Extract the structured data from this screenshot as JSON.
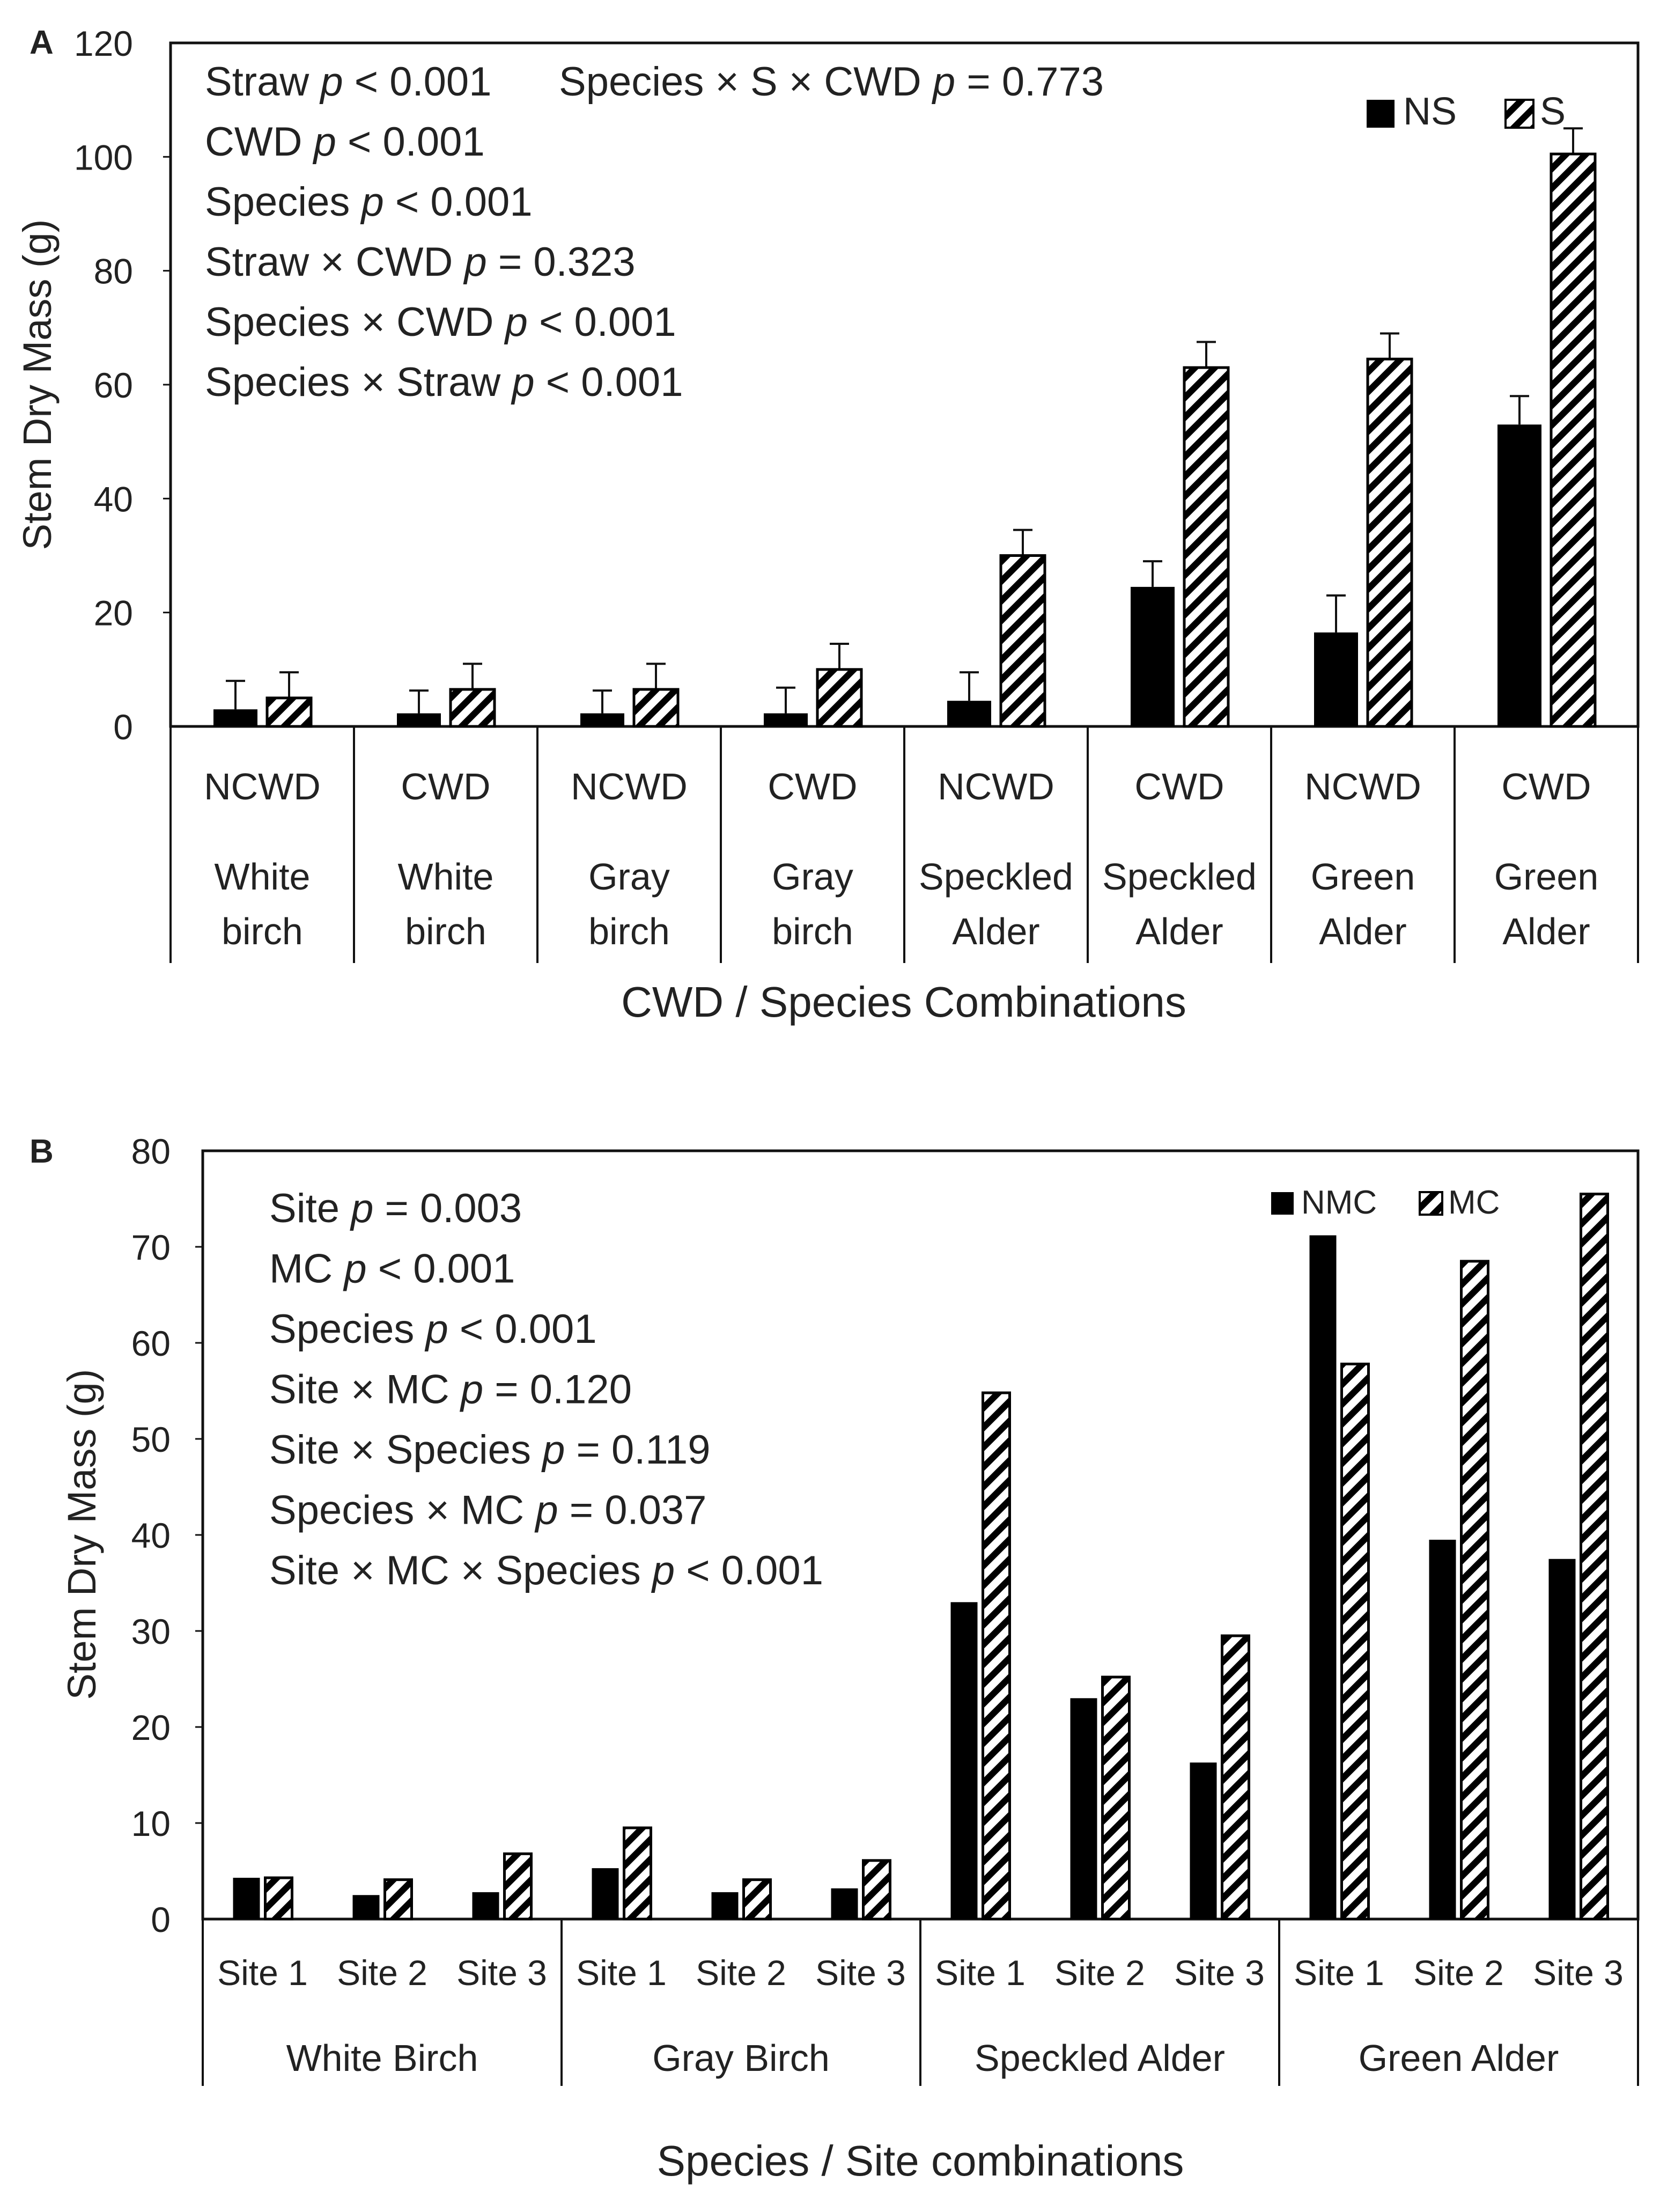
{
  "chart_data": [
    {
      "panel": "A",
      "type": "bar",
      "ylabel": "Stem Dry Mass (g)",
      "xlabel": "CWD / Species Combinations",
      "ylim": [
        0,
        120
      ],
      "yticks": [
        "0",
        "20",
        "40",
        "60",
        "80",
        "100",
        "120"
      ],
      "categories": [
        {
          "cwd": "NCWD",
          "species": [
            "White",
            "birch"
          ]
        },
        {
          "cwd": "CWD",
          "species": [
            "White",
            "birch"
          ]
        },
        {
          "cwd": "NCWD",
          "species": [
            "Gray",
            "birch"
          ]
        },
        {
          "cwd": "CWD",
          "species": [
            "Gray",
            "birch"
          ]
        },
        {
          "cwd": "NCWD",
          "species": [
            "Speckled",
            "Alder"
          ]
        },
        {
          "cwd": "CWD",
          "species": [
            "Speckled",
            "Alder"
          ]
        },
        {
          "cwd": "NCWD",
          "species": [
            "Green",
            "Alder"
          ]
        },
        {
          "cwd": "CWD",
          "species": [
            "Green",
            "Alder"
          ]
        }
      ],
      "series": [
        {
          "name": "NS",
          "fill": "solid",
          "values": [
            3,
            2.3,
            2.3,
            2.3,
            4.5,
            24.5,
            16.5,
            53
          ],
          "errors": [
            5,
            4,
            4,
            4.5,
            5,
            4.5,
            6.5,
            5
          ]
        },
        {
          "name": "S",
          "fill": "hatched",
          "values": [
            5,
            6.5,
            6.5,
            10,
            30,
            63,
            64.5,
            100.5
          ],
          "errors": [
            4.5,
            4.5,
            4.5,
            4.5,
            4.5,
            4.5,
            4.5,
            4.5
          ]
        }
      ],
      "legend": [
        "NS",
        "S"
      ],
      "legend_position": "top-right",
      "annotations": [
        {
          "label": "Straw",
          "p": "p",
          "rel": " < 0.001"
        },
        {
          "label": "Species × S × CWD",
          "p": "p",
          "rel": " = 0.773"
        },
        {
          "label": "CWD",
          "p": "p",
          "rel": " < 0.001"
        },
        {
          "label": "Species",
          "p": "p",
          "rel": " < 0.001"
        },
        {
          "label": "Straw × CWD",
          "p": "p",
          "rel": " = 0.323"
        },
        {
          "label": "Species × CWD",
          "p": "p",
          "rel": " < 0.001"
        },
        {
          "label": "Species × Straw",
          "p": "p",
          "rel": " < 0.001"
        }
      ]
    },
    {
      "panel": "B",
      "type": "bar",
      "ylabel": "Stem Dry Mass (g)",
      "xlabel": "Species / Site combinations",
      "ylim": [
        0,
        80
      ],
      "yticks": [
        "0",
        "10",
        "20",
        "30",
        "40",
        "50",
        "60",
        "70",
        "80"
      ],
      "groups": [
        "White Birch",
        "Gray Birch",
        "Speckled Alder",
        "Green Alder"
      ],
      "sites": [
        "Site 1",
        "Site 2",
        "Site 3"
      ],
      "series": [
        {
          "name": "NMC",
          "fill": "solid",
          "values": [
            4.3,
            2.5,
            2.8,
            5.3,
            2.8,
            3.2,
            33,
            23,
            16.3,
            71.2,
            39.5,
            37.5
          ]
        },
        {
          "name": "MC",
          "fill": "hatched",
          "values": [
            4.3,
            4.1,
            6.8,
            9.5,
            4.1,
            6.1,
            54.8,
            25.2,
            29.5,
            57.8,
            68.5,
            75.5
          ]
        }
      ],
      "legend": [
        "NMC",
        "MC"
      ],
      "legend_position": "top-right",
      "annotations": [
        {
          "label": "Site",
          "p": "p",
          "rel": " = 0.003"
        },
        {
          "label": "MC",
          "p": "p",
          "rel": " < 0.001"
        },
        {
          "label": "Species",
          "p": "p",
          "rel": " < 0.001"
        },
        {
          "label": "Site × MC",
          "p": "p",
          "rel": " = 0.120"
        },
        {
          "label": "Site × Species",
          "p": "p",
          "rel": " = 0.119"
        },
        {
          "label": "Species × MC",
          "p": "p",
          "rel": " = 0.037"
        },
        {
          "label": "Site × MC × Species",
          "p": "p",
          "rel": " < 0.001"
        }
      ]
    }
  ]
}
